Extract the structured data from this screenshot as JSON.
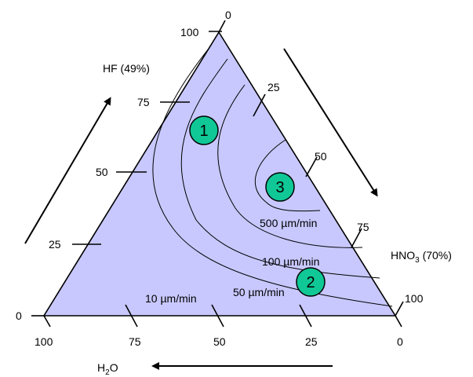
{
  "axes": {
    "hf": {
      "label": "HF (49%)"
    },
    "hno3": {
      "label_main": "HNO",
      "label_sub": "3",
      "label_tail": " (70%)"
    },
    "h2o": {
      "label_main": "H",
      "label_sub": "2",
      "label_tail": "O"
    }
  },
  "ticks": {
    "left_edge": [
      "0",
      "25",
      "50",
      "75",
      "100"
    ],
    "right_edge": [
      "0",
      "25",
      "50",
      "75",
      "100"
    ],
    "bottom_edge": [
      "100",
      "75",
      "50",
      "25",
      "0"
    ]
  },
  "contours": [
    {
      "label": "10 µm/min"
    },
    {
      "label": "50 µm/min"
    },
    {
      "label": "100 µm/min"
    },
    {
      "label": "500 µm/min"
    }
  ],
  "regions": [
    "1",
    "2",
    "3"
  ],
  "colors": {
    "triangle_fill": "#c8c8ff",
    "region_fill": "#10c896",
    "stroke": "#000000"
  }
}
